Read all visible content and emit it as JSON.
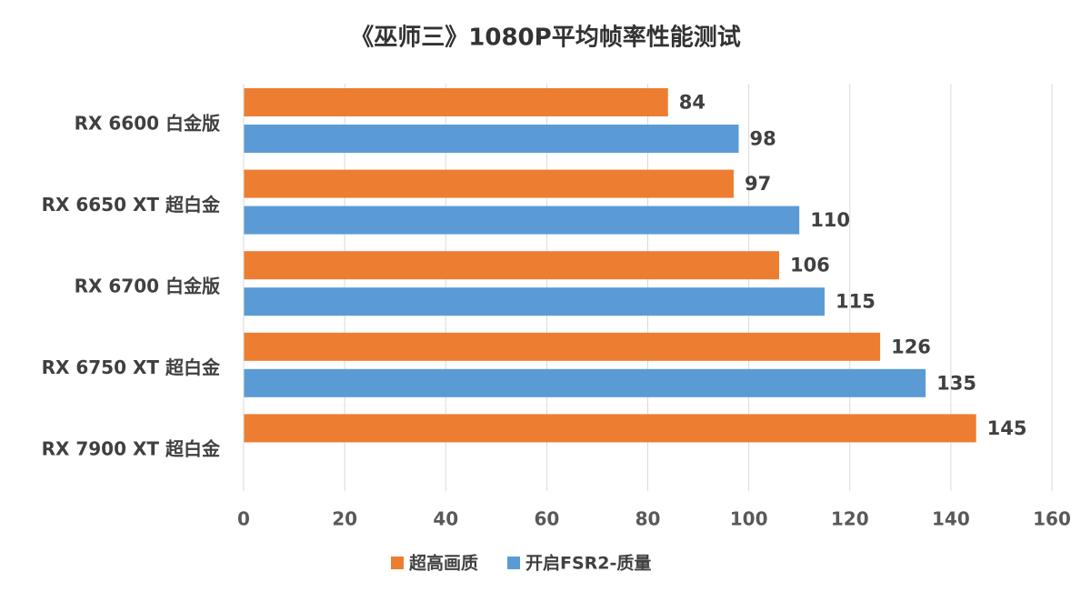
{
  "chart_data": {
    "type": "hbar",
    "title": "《巫师三》1080P平均帧率性能测试",
    "categories": [
      "RX 6600 白金版",
      "RX 6650 XT 超白金",
      "RX 6700 白金版",
      "RX 6750 XT 超白金",
      "RX 7900 XT 超白金"
    ],
    "series": [
      {
        "name": "超高画质",
        "color": "#ed7d31",
        "values": [
          84,
          97,
          106,
          126,
          145
        ]
      },
      {
        "name": "开启FSR2-质量",
        "color": "#5b9bd5",
        "values": [
          98,
          110,
          115,
          135,
          null
        ]
      }
    ],
    "xlim": [
      0,
      160
    ],
    "xticks": [
      0,
      20,
      40,
      60,
      80,
      100,
      120,
      140,
      160
    ],
    "grid": true,
    "legend": "bottom"
  }
}
